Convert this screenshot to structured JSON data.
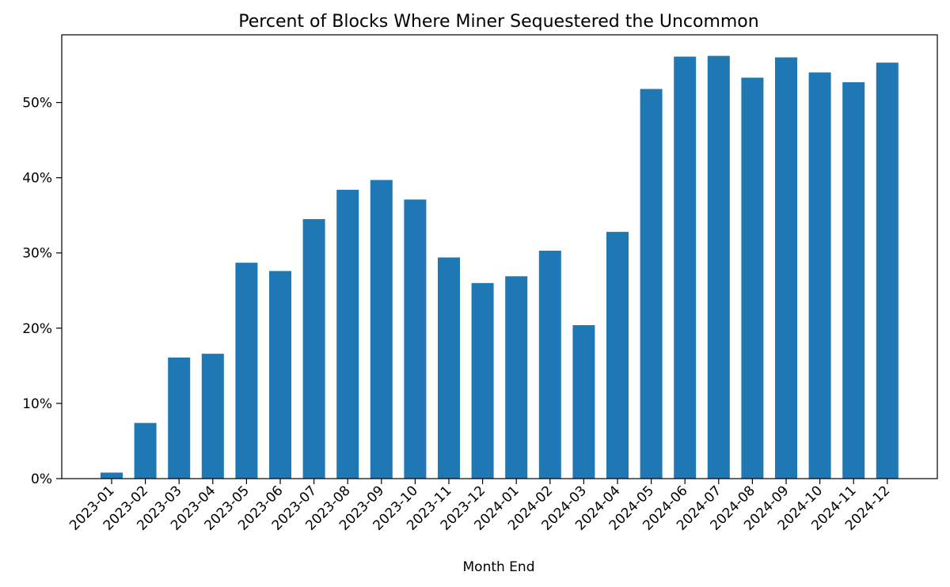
{
  "chart_data": {
    "type": "bar",
    "title": "Percent of Blocks Where Miner Sequestered the Uncommon",
    "xlabel": "Month End",
    "ylabel": "",
    "ylim": [
      0,
      59
    ],
    "y_ticks": [
      0,
      10,
      20,
      30,
      40,
      50
    ],
    "y_tick_labels": [
      "0%",
      "10%",
      "20%",
      "30%",
      "40%",
      "50%"
    ],
    "grid": false,
    "bar_color": "#1f77b4",
    "categories": [
      "2023-01",
      "2023-02",
      "2023-03",
      "2023-04",
      "2023-05",
      "2023-06",
      "2023-07",
      "2023-08",
      "2023-09",
      "2023-10",
      "2023-11",
      "2023-12",
      "2024-01",
      "2024-02",
      "2024-03",
      "2024-04",
      "2024-05",
      "2024-06",
      "2024-07",
      "2024-08",
      "2024-09",
      "2024-10",
      "2024-11",
      "2024-12"
    ],
    "values": [
      0.8,
      7.4,
      16.1,
      16.6,
      28.7,
      27.6,
      34.5,
      38.4,
      39.7,
      37.1,
      29.4,
      26.0,
      26.9,
      30.3,
      20.4,
      32.8,
      51.8,
      56.1,
      56.2,
      53.3,
      56.0,
      54.0,
      52.7,
      55.3
    ]
  }
}
